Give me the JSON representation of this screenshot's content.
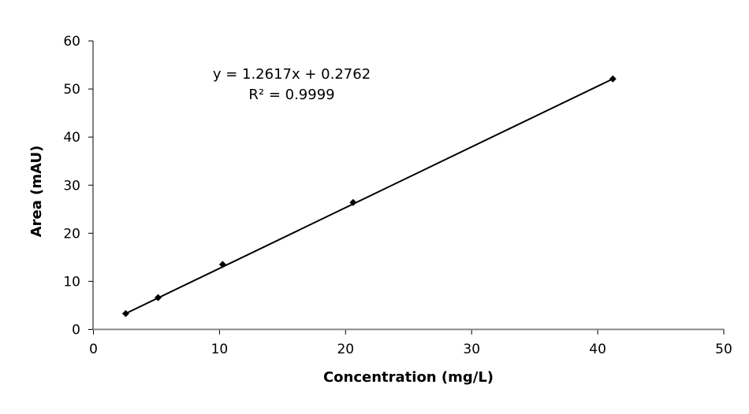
{
  "chart_data": {
    "type": "scatter",
    "title": "",
    "xlabel": "Concentration (mg/L)",
    "ylabel": "Area (mAU)",
    "xlim": [
      0,
      50
    ],
    "ylim": [
      0,
      60
    ],
    "xticks": [
      0,
      10,
      20,
      30,
      40,
      50
    ],
    "yticks": [
      0,
      10,
      20,
      30,
      40,
      50,
      60
    ],
    "grid": false,
    "legend": "none",
    "series": [
      {
        "x": [
          2.56,
          5.13,
          10.25,
          20.6,
          41.2
        ],
        "y": [
          3.3,
          6.6,
          13.5,
          26.4,
          52.1
        ],
        "marker": "diamond",
        "color": "#000000"
      }
    ],
    "trendline": {
      "type": "linear",
      "slope": 1.2617,
      "intercept": 0.2762,
      "color": "#000000"
    },
    "annotations": {
      "equation": "y = 1.2617x + 0.2762",
      "r_squared": "R² = 0.9999"
    }
  }
}
